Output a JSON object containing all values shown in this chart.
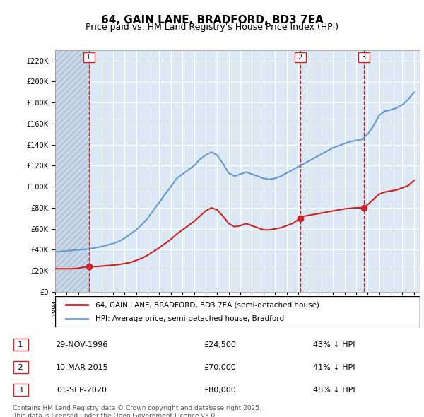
{
  "title": "64, GAIN LANE, BRADFORD, BD3 7EA",
  "subtitle": "Price paid vs. HM Land Registry's House Price Index (HPI)",
  "hpi_label": "HPI: Average price, semi-detached house, Bradford",
  "property_label": "64, GAIN LANE, BRADFORD, BD3 7EA (semi-detached house)",
  "footer": "Contains HM Land Registry data © Crown copyright and database right 2025.\nThis data is licensed under the Open Government Licence v3.0.",
  "transactions": [
    {
      "num": 1,
      "date": "29-NOV-1996",
      "price": 24500,
      "pct": "43%",
      "dir": "↓"
    },
    {
      "num": 2,
      "date": "10-MAR-2015",
      "price": 70000,
      "pct": "41%",
      "dir": "↓"
    },
    {
      "num": 3,
      "date": "01-SEP-2020",
      "price": 80000,
      "pct": "48%",
      "dir": "↓"
    }
  ],
  "transaction_years": [
    1996.91,
    2015.19,
    2020.67
  ],
  "hpi_color": "#6699cc",
  "price_color": "#cc2222",
  "dashed_line_color": "#cc2222",
  "background_plot": "#dce9f5",
  "background_hatch": "#c8d8e8",
  "ylim": [
    0,
    230000
  ],
  "yticks": [
    0,
    20000,
    40000,
    60000,
    80000,
    100000,
    120000,
    140000,
    160000,
    180000,
    200000,
    220000
  ],
  "hpi_x": [
    1994,
    1994.5,
    1995,
    1995.5,
    1996,
    1996.5,
    1997,
    1997.5,
    1998,
    1998.5,
    1999,
    1999.5,
    2000,
    2000.5,
    2001,
    2001.5,
    2002,
    2002.5,
    2003,
    2003.5,
    2004,
    2004.5,
    2005,
    2005.5,
    2006,
    2006.5,
    2007,
    2007.5,
    2008,
    2008.5,
    2009,
    2009.5,
    2010,
    2010.5,
    2011,
    2011.5,
    2012,
    2012.5,
    2013,
    2013.5,
    2014,
    2014.5,
    2015,
    2015.5,
    2016,
    2016.5,
    2017,
    2017.5,
    2018,
    2018.5,
    2019,
    2019.5,
    2020,
    2020.5,
    2021,
    2021.5,
    2022,
    2022.5,
    2023,
    2023.5,
    2024,
    2024.5,
    2025
  ],
  "hpi_y": [
    38000,
    38500,
    39000,
    39500,
    40000,
    40500,
    41000,
    42000,
    43000,
    44500,
    46000,
    48000,
    51000,
    55000,
    59000,
    64000,
    70000,
    78000,
    85000,
    93000,
    100000,
    108000,
    112000,
    116000,
    120000,
    126000,
    130000,
    133000,
    130000,
    122000,
    113000,
    110000,
    112000,
    114000,
    112000,
    110000,
    108000,
    107000,
    108000,
    110000,
    113000,
    116000,
    119000,
    122000,
    125000,
    128000,
    131000,
    134000,
    137000,
    139000,
    141000,
    143000,
    144000,
    145000,
    150000,
    158000,
    168000,
    172000,
    173000,
    175000,
    178000,
    183000,
    190000
  ],
  "price_x": [
    1994,
    1994.5,
    1995,
    1995.5,
    1996,
    1996.91,
    1997,
    1997.5,
    1998,
    1998.5,
    1999,
    1999.5,
    2000,
    2000.5,
    2001,
    2001.5,
    2002,
    2002.5,
    2003,
    2003.5,
    2004,
    2004.5,
    2005,
    2005.5,
    2006,
    2006.5,
    2007,
    2007.5,
    2008,
    2008.5,
    2009,
    2009.5,
    2010,
    2010.5,
    2011,
    2011.5,
    2012,
    2012.5,
    2013,
    2013.5,
    2014,
    2014.5,
    2015.19,
    2015.5,
    2016,
    2016.5,
    2017,
    2017.5,
    2018,
    2018.5,
    2019,
    2019.5,
    2020,
    2020.67,
    2021,
    2021.5,
    2022,
    2022.5,
    2023,
    2023.5,
    2024,
    2024.5,
    2025
  ],
  "price_y": [
    22000,
    22000,
    22000,
    22000,
    22500,
    24500,
    24500,
    24000,
    24500,
    25000,
    25500,
    26000,
    27000,
    28000,
    30000,
    32000,
    35000,
    38500,
    42000,
    46000,
    50000,
    55000,
    59000,
    63000,
    67000,
    72000,
    77000,
    80000,
    78000,
    72000,
    65000,
    62000,
    63000,
    65000,
    63000,
    61000,
    59000,
    59000,
    60000,
    61000,
    63000,
    65000,
    70000,
    72000,
    73000,
    74000,
    75000,
    76000,
    77000,
    78000,
    79000,
    79500,
    80000,
    80000,
    83000,
    88000,
    93000,
    95000,
    96000,
    97000,
    99000,
    101000,
    106000
  ]
}
